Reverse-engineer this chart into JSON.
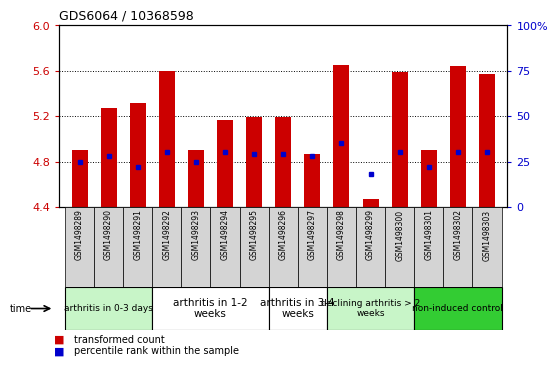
{
  "title": "GDS6064 / 10368598",
  "samples": [
    "GSM1498289",
    "GSM1498290",
    "GSM1498291",
    "GSM1498292",
    "GSM1498293",
    "GSM1498294",
    "GSM1498295",
    "GSM1498296",
    "GSM1498297",
    "GSM1498298",
    "GSM1498299",
    "GSM1498300",
    "GSM1498301",
    "GSM1498302",
    "GSM1498303"
  ],
  "transformed_counts": [
    4.9,
    5.27,
    5.32,
    5.6,
    4.9,
    5.17,
    5.19,
    5.19,
    4.87,
    5.65,
    4.47,
    5.59,
    4.9,
    5.64,
    5.57
  ],
  "percentile_ranks": [
    25,
    28,
    22,
    30,
    25,
    30,
    29,
    29,
    28,
    35,
    18,
    30,
    22,
    30,
    30
  ],
  "ylim_left": [
    4.4,
    6.0
  ],
  "ylim_right": [
    0,
    100
  ],
  "yticks_left": [
    4.4,
    4.8,
    5.2,
    5.6,
    6.0
  ],
  "yticks_right": [
    0,
    25,
    50,
    75,
    100
  ],
  "bar_color": "#cc0000",
  "dot_color": "#0000cc",
  "baseline": 4.4,
  "groups": [
    {
      "label": "arthritis in 0-3 days",
      "start": 0,
      "end": 3,
      "color": "#c8f5c8",
      "fontsize": 6.5
    },
    {
      "label": "arthritis in 1-2\nweeks",
      "start": 3,
      "end": 7,
      "color": "#ffffff",
      "fontsize": 7.5
    },
    {
      "label": "arthritis in 3-4\nweeks",
      "start": 7,
      "end": 9,
      "color": "#ffffff",
      "fontsize": 7.5
    },
    {
      "label": "declining arthritis > 2\nweeks",
      "start": 9,
      "end": 12,
      "color": "#c8f5c8",
      "fontsize": 6.5
    },
    {
      "label": "non-induced control",
      "start": 12,
      "end": 15,
      "color": "#33cc33",
      "fontsize": 6.5
    }
  ],
  "grid_yticks": [
    4.8,
    5.2,
    5.6
  ],
  "tick_color_left": "#cc0000",
  "tick_color_right": "#0000cc",
  "bg_sample_color": "#d4d4d4"
}
